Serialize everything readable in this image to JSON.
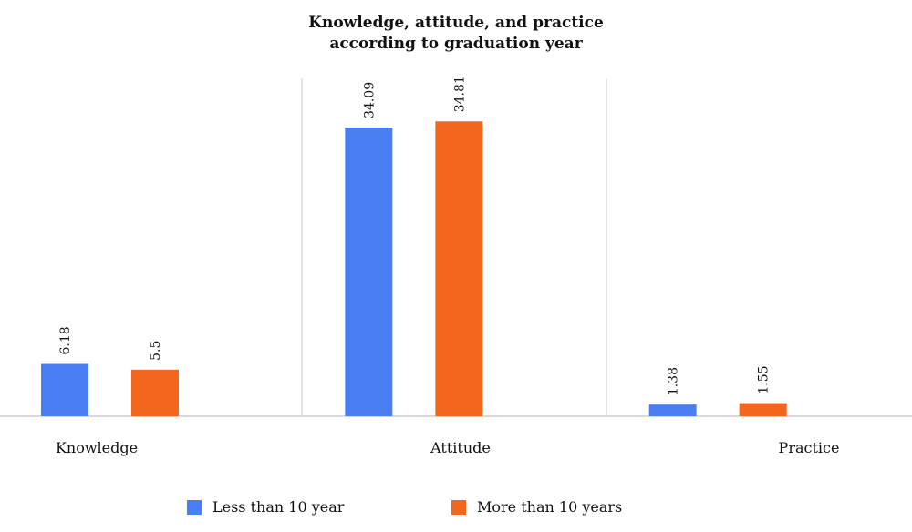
{
  "chart_data": {
    "type": "bar",
    "title": [
      "Knowledge, attitude, and practice",
      "according to graduation year"
    ],
    "categories": [
      "Knowledge",
      "Attitude",
      "Practice"
    ],
    "series": [
      {
        "name": "Less than 10 year",
        "values": [
          6.18,
          34.09,
          1.38
        ],
        "color": "#4a7ef3"
      },
      {
        "name": "More than 10 years",
        "values": [
          5.5,
          34.81,
          1.55
        ],
        "color": "#f4651d"
      }
    ],
    "ylim": [
      0,
      50
    ],
    "grid": false,
    "legend_position": "bottom-center"
  }
}
